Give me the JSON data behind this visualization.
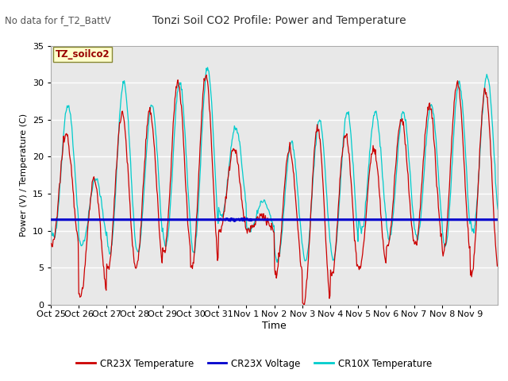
{
  "title": "Tonzi Soil CO2 Profile: Power and Temperature",
  "subtitle": "No data for f_T2_BattV",
  "ylabel": "Power (V) / Temperature (C)",
  "xlabel": "Time",
  "ylim": [
    0,
    35
  ],
  "background_color": "#ffffff",
  "plot_bg_color": "#e8e8e8",
  "grid_color": "#ffffff",
  "voltage_value": 11.5,
  "annotation_label": "TZ_soilco2",
  "x_tick_labels": [
    "Oct 25",
    "Oct 26",
    "Oct 27",
    "Oct 28",
    "Oct 29",
    "Oct 30",
    "Oct 31",
    "Nov 1",
    "Nov 2",
    "Nov 3",
    "Nov 4",
    "Nov 5",
    "Nov 6",
    "Nov 7",
    "Nov 8",
    "Nov 9"
  ],
  "cr23x_color": "#cc0000",
  "voltage_color": "#0000cc",
  "cr10x_color": "#00cccc",
  "legend_entries": [
    "CR23X Temperature",
    "CR23X Voltage",
    "CR10X Temperature"
  ],
  "figsize": [
    6.4,
    4.8
  ],
  "dpi": 100
}
